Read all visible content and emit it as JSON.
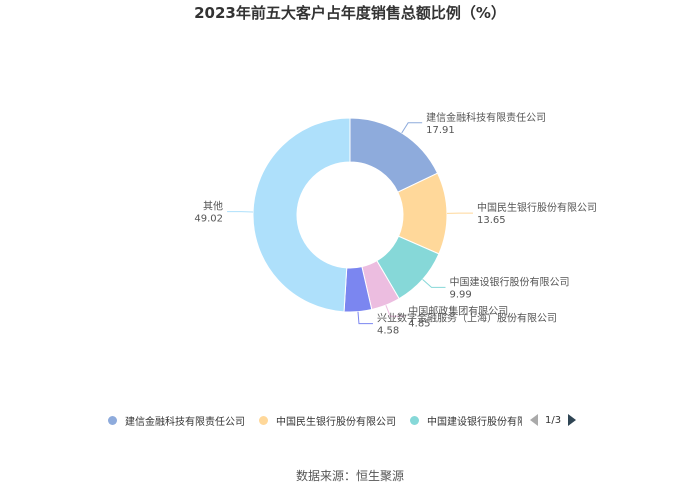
{
  "chart_data": {
    "type": "pie",
    "title": "2023年前五大客户占年度销售总额比例（%）",
    "slices": [
      {
        "name": "建信金融科技有限责任公司",
        "value": 17.91,
        "value_label": "17.91",
        "color": "#8eabdc"
      },
      {
        "name": "中国民生银行股份有限公司",
        "value": 13.65,
        "value_label": "13.65",
        "color": "#ffd89a"
      },
      {
        "name": "中国建设银行股份有限公司",
        "value": 9.99,
        "value_label": "9.99",
        "color": "#86d8d8"
      },
      {
        "name": "中国邮政集团有限公司",
        "value": 4.85,
        "value_label": "4.85",
        "color": "#ecbde0"
      },
      {
        "name": "兴业数字金融服务（上海）股份有限公司",
        "value": 4.58,
        "value_label": "4.58",
        "color": "#7b86f0"
      },
      {
        "name": "其他",
        "value": 49.02,
        "value_label": "49.02",
        "color": "#aee0fb"
      }
    ],
    "legend": {
      "placement": "bottom",
      "visible_items": [
        "建信金融科技有限责任公司",
        "中国民生银行股份有限公司",
        "中国建设银行股份有限公"
      ],
      "page": "1/3"
    }
  },
  "source": "数据来源：恒生聚源"
}
